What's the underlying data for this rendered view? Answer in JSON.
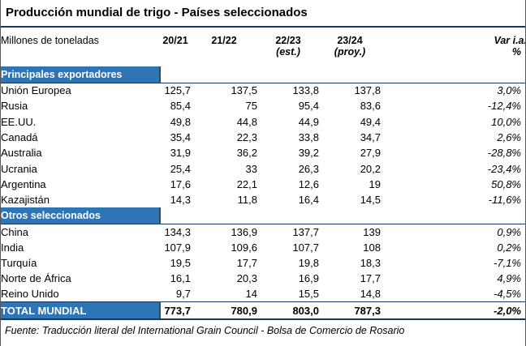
{
  "chart_data": {
    "type": "table",
    "title": "Producción mundial de trigo - Países seleccionados",
    "unit": "Millones de toneladas",
    "columns_top": [
      "20/21",
      "21/22",
      "22/23",
      "23/24",
      "Var i.a."
    ],
    "columns_sub": [
      "",
      "",
      "(est.)",
      "(proy.)",
      "%"
    ],
    "sections": [
      {
        "label": "Principales exportadores",
        "rows": [
          {
            "name": "Unión Europea",
            "values": [
              "125,7",
              "137,5",
              "133,8",
              "137,8",
              "3,0%"
            ]
          },
          {
            "name": "Rusia",
            "values": [
              "85,4",
              "75",
              "95,4",
              "83,6",
              "-12,4%"
            ]
          },
          {
            "name": "EE.UU.",
            "values": [
              "49,8",
              "44,8",
              "44,9",
              "49,4",
              "10,0%"
            ]
          },
          {
            "name": "Canadá",
            "values": [
              "35,4",
              "22,3",
              "33,8",
              "34,7",
              "2,6%"
            ]
          },
          {
            "name": "Australia",
            "values": [
              "31,9",
              "36,2",
              "39,2",
              "27,9",
              "-28,8%"
            ]
          },
          {
            "name": "Ucrania",
            "values": [
              "25,4",
              "33",
              "26,3",
              "20,2",
              "-23,4%"
            ]
          },
          {
            "name": "Argentina",
            "values": [
              "17,6",
              "22,1",
              "12,6",
              "19",
              "50,8%"
            ]
          },
          {
            "name": "Kazajistán",
            "values": [
              "14,3",
              "11,8",
              "16,4",
              "14,5",
              "-11,6%"
            ]
          }
        ]
      },
      {
        "label": "Otros seleccionados",
        "rows": [
          {
            "name": "China",
            "values": [
              "134,3",
              "136,9",
              "137,7",
              "139",
              "0,9%"
            ]
          },
          {
            "name": "India",
            "values": [
              "107,9",
              "109,6",
              "107,7",
              "108",
              "0,2%"
            ]
          },
          {
            "name": "Turquía",
            "values": [
              "19,5",
              "17,7",
              "19,8",
              "18,3",
              "-7,1%"
            ]
          },
          {
            "name": "Norte de África",
            "values": [
              "16,1",
              "20,3",
              "16,9",
              "17,7",
              "4,9%"
            ]
          },
          {
            "name": "Reino Unido",
            "values": [
              "9,7",
              "14",
              "15,5",
              "14,8",
              "-4,5%"
            ]
          }
        ]
      }
    ],
    "total": {
      "name": "TOTAL MUNDIAL",
      "values": [
        "773,7",
        "780,9",
        "803,0",
        "787,3",
        "-2,0%"
      ]
    },
    "source": "Fuente: Traducción literal del International Grain Council - Bolsa de Comercio de Rosario"
  },
  "colors": {
    "band_blue": "#2E75B6",
    "band_border": "#1F4E79",
    "rule_navy": "#17375E",
    "text": "#000000",
    "band_text": "#FFFFFF"
  }
}
